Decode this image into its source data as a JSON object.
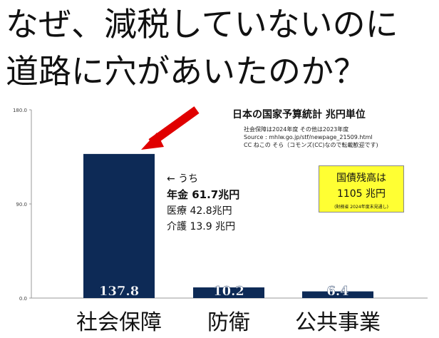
{
  "headline": {
    "line1": "なぜ、減税していないのに",
    "line2": "道路に穴があいたのか？"
  },
  "info": {
    "title": "日本の国家予算統計 兆円単位",
    "line1": "社会保障は2024年度 その他は2023年度",
    "line2": "Source : mhlw.go.jp/stf/newpage_21509.html",
    "line3": "CC ねこの そら（コモンズ(CC)なので転載歓迎です)"
  },
  "breakdown": {
    "header": "← うち",
    "pension": "年金 61.7兆円",
    "medical": "医療 42.8兆円",
    "care": "介護 13.9 兆円"
  },
  "debt_box": {
    "line1": "国債残高は",
    "line2": "1105 兆円",
    "line3": "(財務省 2024年度末見通し)"
  },
  "colors": {
    "bar": "#0d2a56",
    "arrow": "#e00000",
    "debt_bg": "#ffff33"
  },
  "chart_data": {
    "type": "bar",
    "categories": [
      "社会保障",
      "防衛",
      "公共事業"
    ],
    "values": [
      137.8,
      10.2,
      6.4
    ],
    "value_labels": [
      "137.8",
      "10.2",
      "6.4"
    ],
    "ylim": [
      0,
      180
    ],
    "yticks": [
      0,
      90,
      180
    ],
    "ytick_labels": [
      "0.0",
      "90.0",
      "180.0"
    ],
    "grid": false,
    "title": "",
    "xlabel": "",
    "ylabel": ""
  }
}
